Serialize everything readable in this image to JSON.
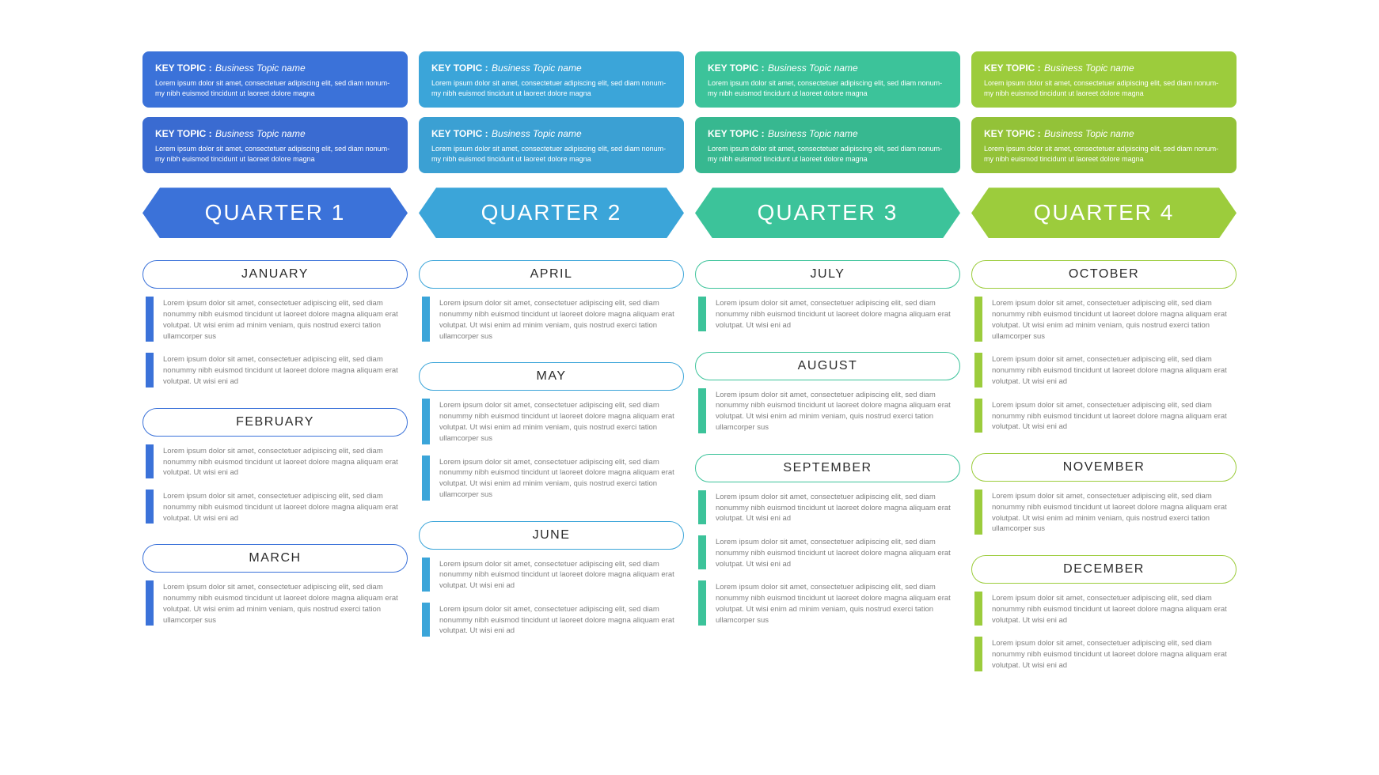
{
  "meta": {
    "type": "infographic",
    "layout": "four-column-quarterly-roadmap",
    "background_color": "#ffffff",
    "body_text_color": "#808080",
    "month_text_color": "#2b2b2b"
  },
  "topic_template": {
    "label": "KEY TOPIC :",
    "name": "Business Topic name",
    "desc": "Lorem ipsum dolor sit amet, consectetuer adipiscing elit, sed diam nonum-my nibh euismod tincidunt ut laoreet dolore magna"
  },
  "bullet_text_long": "Lorem ipsum dolor sit amet, consectetuer adipiscing elit, sed diam nonummy nibh euismod tincidunt ut laoreet dolore magna aliquam erat volutpat. Ut wisi enim ad minim veniam, quis nostrud exerci tation ullamcorper sus",
  "bullet_text_short": "Lorem ipsum dolor sit amet, consectetuer adipiscing elit, sed diam nonummy nibh euismod tincidunt ut laoreet dolore magna aliquam erat volutpat. Ut wisi eni ad",
  "quarters": [
    {
      "label": "QUARTER 1",
      "color_main": "#3b72d9",
      "color_topic1": "#3b72d9",
      "color_topic2": "#3a6bd1",
      "pill_border": "#3b72d9",
      "bullet_color": "#3b72d9",
      "months": [
        {
          "name": "JANUARY",
          "bullets": [
            "long",
            "short"
          ]
        },
        {
          "name": "FEBRUARY",
          "bullets": [
            "short",
            "short"
          ]
        },
        {
          "name": "MARCH",
          "bullets": [
            "long"
          ]
        }
      ]
    },
    {
      "label": "QUARTER 2",
      "color_main": "#3ba5d9",
      "color_topic1": "#3ba5d9",
      "color_topic2": "#3ba0d3",
      "pill_border": "#3ba5d9",
      "bullet_color": "#3ba5d9",
      "months": [
        {
          "name": "APRIL",
          "bullets": [
            "long"
          ]
        },
        {
          "name": "MAY",
          "bullets": [
            "long",
            "long"
          ]
        },
        {
          "name": "JUNE",
          "bullets": [
            "short",
            "short"
          ]
        }
      ]
    },
    {
      "label": "QUARTER 3",
      "color_main": "#3cc39a",
      "color_topic1": "#3cc39a",
      "color_topic2": "#37b890",
      "pill_border": "#3cc39a",
      "bullet_color": "#3cc39a",
      "months": [
        {
          "name": "JULY",
          "bullets": [
            "short"
          ]
        },
        {
          "name": "AUGUST",
          "bullets": [
            "long"
          ]
        },
        {
          "name": "SEPTEMBER",
          "bullets": [
            "short",
            "short",
            "long"
          ]
        }
      ]
    },
    {
      "label": "QUARTER 4",
      "color_main": "#9ccc3c",
      "color_topic1": "#9ccc3c",
      "color_topic2": "#93c238",
      "pill_border": "#9ccc3c",
      "bullet_color": "#9ccc3c",
      "months": [
        {
          "name": "OCTOBER",
          "bullets": [
            "long",
            "short",
            "short"
          ]
        },
        {
          "name": "NOVEMBER",
          "bullets": [
            "long"
          ]
        },
        {
          "name": "DECEMBER",
          "bullets": [
            "short",
            "short"
          ]
        }
      ]
    }
  ]
}
